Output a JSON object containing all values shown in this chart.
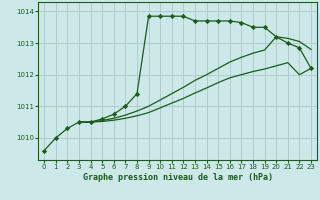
{
  "title": "Graphe pression niveau de la mer (hPa)",
  "background_color": "#cce8e8",
  "grid_color": "#b0cccc",
  "line_color": "#1a5c1a",
  "xlim": [
    -0.5,
    23.5
  ],
  "ylim": [
    1009.3,
    1014.3
  ],
  "yticks": [
    1010,
    1011,
    1012,
    1013,
    1014
  ],
  "xticks": [
    0,
    1,
    2,
    3,
    4,
    5,
    6,
    7,
    8,
    9,
    10,
    11,
    12,
    13,
    14,
    15,
    16,
    17,
    18,
    19,
    20,
    21,
    22,
    23
  ],
  "series1_x": [
    0,
    1,
    2,
    3,
    4,
    5,
    6,
    7,
    8,
    9,
    10,
    11,
    12,
    13,
    14,
    15,
    16,
    17,
    18,
    19,
    20,
    21,
    22,
    23
  ],
  "series1_y": [
    1009.6,
    1010.0,
    1010.3,
    1010.5,
    1010.5,
    1010.6,
    1010.75,
    1011.0,
    1011.4,
    1013.85,
    1013.85,
    1013.85,
    1013.85,
    1013.7,
    1013.7,
    1013.7,
    1013.7,
    1013.65,
    1013.5,
    1013.5,
    1013.2,
    1013.0,
    1012.85,
    1012.2
  ],
  "series2_x": [
    3,
    4,
    5,
    6,
    7,
    8,
    9,
    10,
    11,
    12,
    13,
    14,
    15,
    16,
    17,
    18,
    19,
    20,
    21,
    22,
    23
  ],
  "series2_y": [
    1010.5,
    1010.5,
    1010.55,
    1010.62,
    1010.72,
    1010.85,
    1011.0,
    1011.2,
    1011.4,
    1011.6,
    1011.82,
    1012.0,
    1012.2,
    1012.4,
    1012.55,
    1012.68,
    1012.78,
    1013.2,
    1013.15,
    1013.05,
    1012.8
  ],
  "series3_x": [
    3,
    4,
    5,
    6,
    7,
    8,
    9,
    10,
    11,
    12,
    13,
    14,
    15,
    16,
    17,
    18,
    19,
    20,
    21,
    22,
    23
  ],
  "series3_y": [
    1010.5,
    1010.5,
    1010.52,
    1010.56,
    1010.62,
    1010.7,
    1010.8,
    1010.95,
    1011.1,
    1011.25,
    1011.42,
    1011.58,
    1011.75,
    1011.9,
    1012.0,
    1012.1,
    1012.18,
    1012.28,
    1012.38,
    1012.0,
    1012.2
  ]
}
